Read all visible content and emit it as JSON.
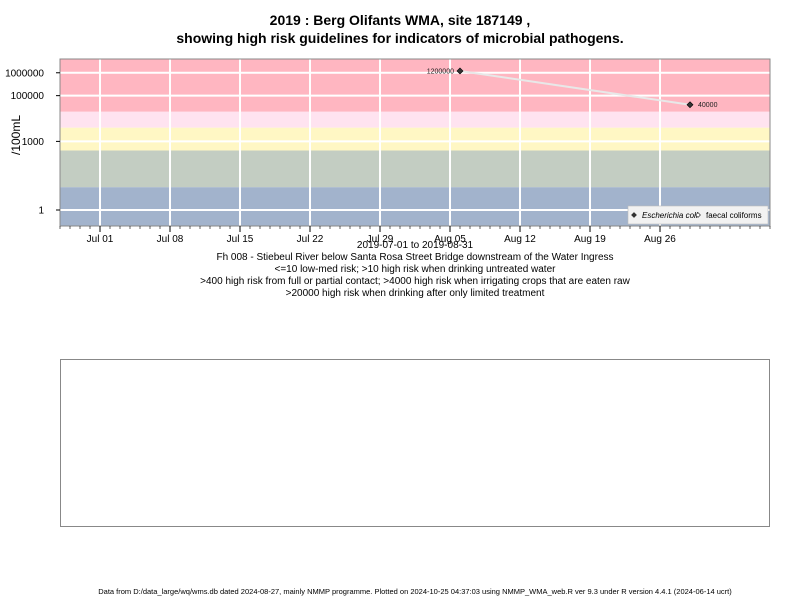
{
  "title_line1": "2019 : Berg Olifants WMA, site 187149 ,",
  "title_line2": "showing high risk guidelines for indicators of microbial pathogens.",
  "chart_data": {
    "type": "line",
    "ylabel": "/100mL",
    "y_scale": "log",
    "ylim": [
      0.2,
      4000000
    ],
    "xlim": [
      "2019-06-27",
      "2019-09-06"
    ],
    "y_tick_values": [
      1,
      1000,
      100000,
      1000000
    ],
    "y_tick_labels": [
      "1",
      "1000",
      "100000",
      "1000000"
    ],
    "x_ticks": [
      {
        "date": "2019-07-01",
        "label": "Jul 01"
      },
      {
        "date": "2019-07-08",
        "label": "Jul 08"
      },
      {
        "date": "2019-07-15",
        "label": "Jul 15"
      },
      {
        "date": "2019-07-22",
        "label": "Jul 22"
      },
      {
        "date": "2019-07-29",
        "label": "Jul 29"
      },
      {
        "date": "2019-08-05",
        "label": "Aug 05"
      },
      {
        "date": "2019-08-12",
        "label": "Aug 12"
      },
      {
        "date": "2019-08-19",
        "label": "Aug 19"
      },
      {
        "date": "2019-08-26",
        "label": "Aug 26"
      }
    ],
    "bands": [
      {
        "from": 0.2,
        "to": 10,
        "color": "#a2b3cc"
      },
      {
        "from": 10,
        "to": 400,
        "color": "#c3cdc2"
      },
      {
        "from": 400,
        "to": 4000,
        "color": "#fff7c4"
      },
      {
        "from": 4000,
        "to": 20000,
        "color": "#ffe3f0"
      },
      {
        "from": 20000,
        "to": 4000000,
        "color": "#ffb6c1"
      }
    ],
    "series": [
      {
        "name": "Escherichia coli",
        "color": "#333333",
        "x": [
          "2019-08-06",
          "2019-08-29"
        ],
        "y": [
          1200000,
          40000
        ],
        "point_labels": [
          "1200000",
          "40000"
        ]
      }
    ],
    "legend": {
      "position": "bottom-right",
      "entries": [
        {
          "label": "Escherichia coli",
          "marker": "filled-diamond",
          "italic": true
        },
        {
          "label": "faecal coliforms",
          "marker": "open-diamond",
          "italic": false
        }
      ]
    },
    "grid": true
  },
  "caption_lines": [
    "2019-07-01 to 2019-08-31",
    "Fh 008 - Stiebeul River below Santa Rosa Street Bridge downstream of the Water Ingress",
    "<=10 low-med risk; >10 high risk when drinking untreated water",
    ">400 high risk from full or partial contact; >4000 high risk when irrigating crops that are eaten raw",
    ">20000 high risk when drinking after only limited treatment"
  ],
  "footer": "Data from D:/data_large/wq/wms.db dated 2024-08-27, mainly NMMP programme. Plotted on 2024-10-25 04:37:03 using NMMP_WMA_web.R ver 9.3 under R version 4.4.1 (2024-06-14 ucrt)"
}
